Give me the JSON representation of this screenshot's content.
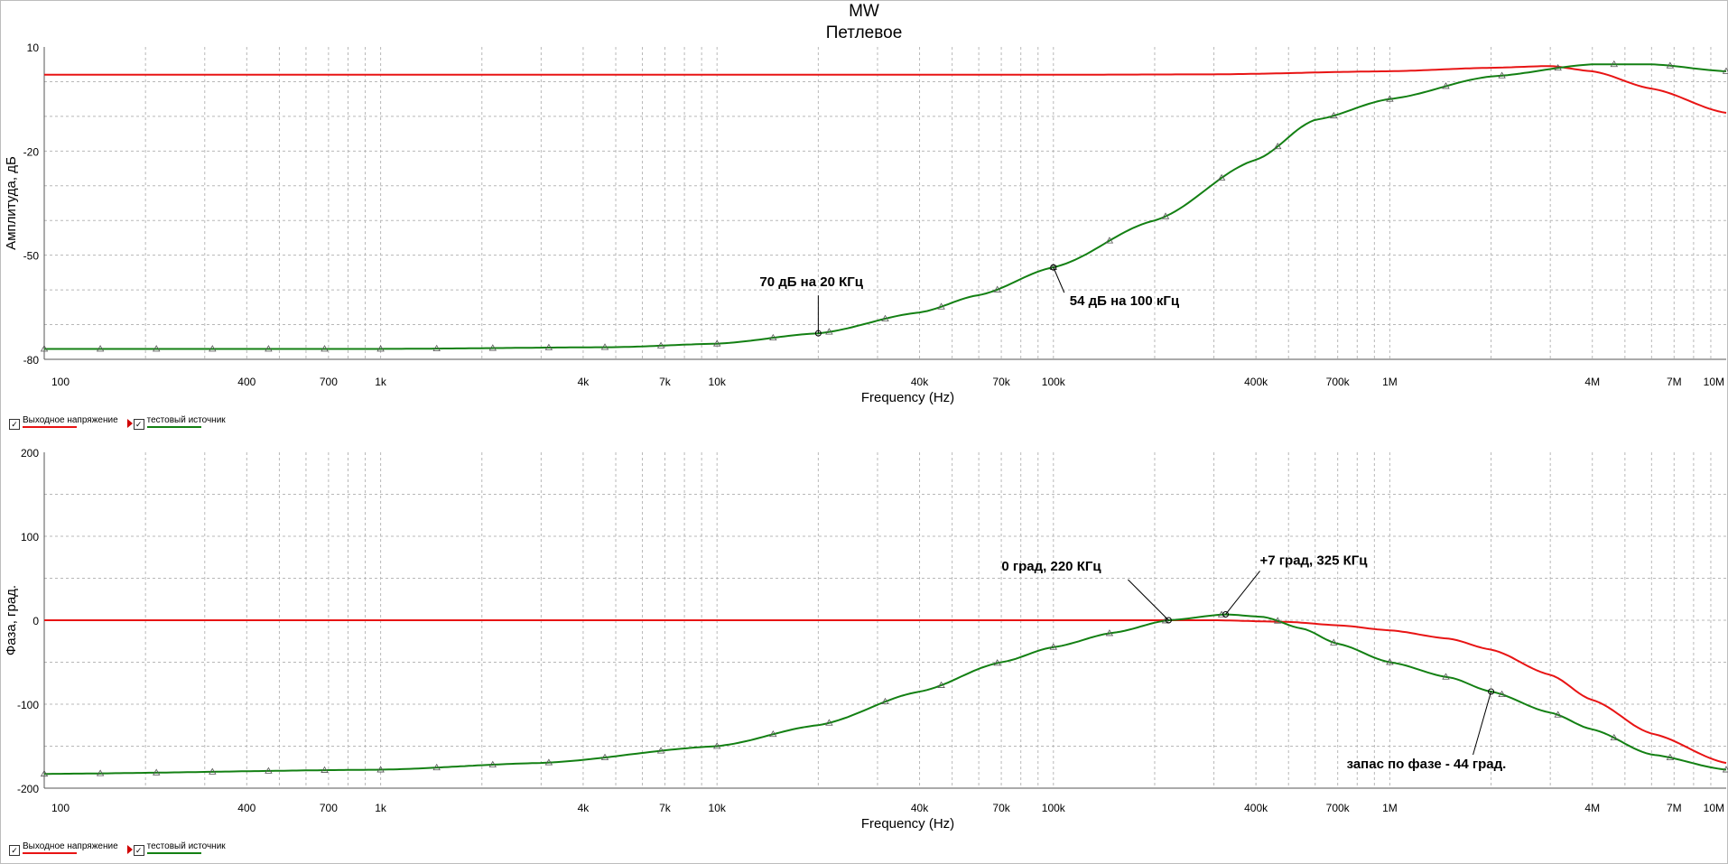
{
  "window": {
    "title": "MW",
    "subtitle": "Петлевое"
  },
  "colors": {
    "series1": "#e81414",
    "series2": "#138013",
    "grid": "#b8b8b8",
    "axis": "#555555"
  },
  "chart_data": [
    {
      "type": "line",
      "xscale": "log",
      "xlabel": "Frequency (Hz)",
      "ylabel": "Амплитуда, дБ",
      "xlim": [
        100,
        10000000
      ],
      "ylim": [
        -80,
        10
      ],
      "yticks": [
        10,
        -20,
        -50,
        -80
      ],
      "xticklabels": [
        "100",
        "400",
        "700",
        "1k",
        "4k",
        "7k",
        "10k",
        "40k",
        "70k",
        "100k",
        "400k",
        "700k",
        "1M",
        "4M",
        "7M",
        "10M"
      ],
      "xtickvalues": [
        100,
        400,
        700,
        1000,
        4000,
        7000,
        10000,
        40000,
        70000,
        100000,
        400000,
        700000,
        1000000,
        4000000,
        7000000,
        10000000
      ],
      "grid": true,
      "legend_position": "bottom-left",
      "series": [
        {
          "name": "Выходное напряжение",
          "x": [
            100,
            10000,
            100000,
            300000,
            1000000,
            2000000,
            3000000,
            4000000,
            6000000,
            10000000
          ],
          "y": [
            2,
            2,
            2,
            2.1,
            3,
            4,
            4.5,
            3,
            -2,
            -9
          ]
        },
        {
          "name": "тестовый источник",
          "x": [
            100,
            1000,
            5000,
            10000,
            20000,
            40000,
            60000,
            100000,
            200000,
            400000,
            600000,
            1000000,
            2000000,
            4000000,
            6000000,
            10000000
          ],
          "y": [
            -77,
            -77,
            -76.5,
            -75.5,
            -72.5,
            -66.5,
            -61.5,
            -53.5,
            -40,
            -22.5,
            -11,
            -5,
            1.5,
            5,
            5,
            3
          ],
          "markers": "triangle"
        }
      ],
      "annotations": [
        {
          "text": "70 дБ на 20 КГц",
          "x": 20000,
          "y": -72.5
        },
        {
          "text": "54 дБ на 100 кГц",
          "x": 100000,
          "y": -53.5
        }
      ]
    },
    {
      "type": "line",
      "xscale": "log",
      "xlabel": "Frequency (Hz)",
      "ylabel": "Фаза, град.",
      "xlim": [
        100,
        10000000
      ],
      "ylim": [
        -200,
        200
      ],
      "yticks": [
        200,
        100,
        0,
        -100,
        -200
      ],
      "xticklabels": [
        "100",
        "400",
        "700",
        "1k",
        "4k",
        "7k",
        "10k",
        "40k",
        "70k",
        "100k",
        "400k",
        "700k",
        "1M",
        "4M",
        "7M",
        "10M"
      ],
      "xtickvalues": [
        100,
        400,
        700,
        1000,
        4000,
        7000,
        10000,
        40000,
        70000,
        100000,
        400000,
        700000,
        1000000,
        4000000,
        7000000,
        10000000
      ],
      "grid": true,
      "legend_position": "bottom-left",
      "series": [
        {
          "name": "Выходное напряжение",
          "x": [
            100,
            300000,
            500000,
            700000,
            1000000,
            1500000,
            2000000,
            3000000,
            4000000,
            6000000,
            10000000
          ],
          "y": [
            0,
            0,
            -2,
            -6,
            -12,
            -22,
            -35,
            -65,
            -95,
            -135,
            -170
          ]
        },
        {
          "name": "тестовый источник",
          "x": [
            100,
            1000,
            3000,
            10000,
            20000,
            40000,
            70000,
            100000,
            150000,
            220000,
            325000,
            420000,
            550000,
            700000,
            1000000,
            1500000,
            2000000,
            3000000,
            4000000,
            6000000,
            10000000
          ],
          "y": [
            -183,
            -178,
            -170,
            -150,
            -125,
            -85,
            -50,
            -32,
            -15,
            0,
            7,
            4,
            -10,
            -28,
            -50,
            -68,
            -85,
            -110,
            -130,
            -160,
            -178
          ],
          "markers": "triangle"
        }
      ],
      "annotations": [
        {
          "text": "0 град, 220 КГц",
          "x": 220000,
          "y": 0
        },
        {
          "text": "+7 град, 325 КГц",
          "x": 325000,
          "y": 7
        },
        {
          "text": "запас по фазе - 44 град.",
          "x": 2000000,
          "y": -85
        }
      ]
    }
  ],
  "legend": {
    "items": [
      {
        "label": "Выходное напряжение",
        "checked": true
      },
      {
        "label": "тестовый источник",
        "checked": true
      }
    ]
  }
}
